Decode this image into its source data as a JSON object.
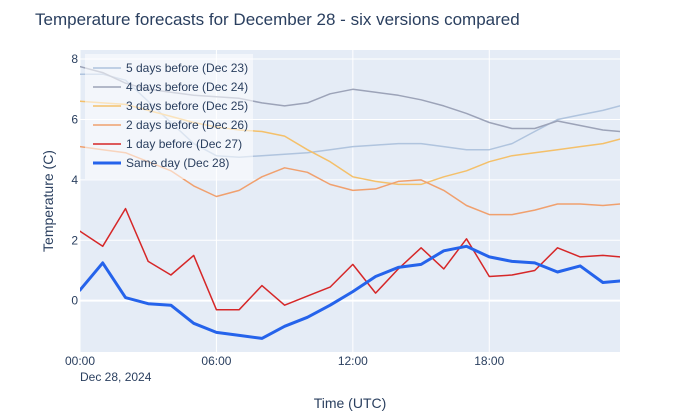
{
  "chart_data": {
    "type": "line",
    "title": "Temperature forecasts for December 28 - six versions compared",
    "xlabel": "Time (UTC)",
    "ylabel": "Temperature (C)",
    "x_tick_labels": [
      "00:00",
      "06:00",
      "12:00",
      "18:00"
    ],
    "x_date_label": "Dec 28, 2024",
    "y_ticks": [
      0,
      2,
      4,
      6,
      8
    ],
    "xlim": [
      0,
      23.75
    ],
    "ylim": [
      -1.7,
      8.3
    ],
    "grid": true,
    "legend_position": "top-left",
    "x": [
      0,
      1,
      2,
      3,
      4,
      5,
      6,
      7,
      8,
      9,
      10,
      11,
      12,
      13,
      14,
      15,
      16,
      17,
      18,
      19,
      20,
      21,
      22,
      23,
      23.75
    ],
    "series": [
      {
        "name": "5 days before (Dec 23)",
        "color": "#b0c4de",
        "width": 1.5,
        "values": [
          7.5,
          7.5,
          7.3,
          6.6,
          5.9,
          5.2,
          4.8,
          4.75,
          4.8,
          4.85,
          4.9,
          5.0,
          5.1,
          5.15,
          5.2,
          5.2,
          5.1,
          5.0,
          5.0,
          5.2,
          5.6,
          6.0,
          6.15,
          6.3,
          6.45
        ]
      },
      {
        "name": "4 days before (Dec 24)",
        "color": "#9ca3b8",
        "width": 1.5,
        "values": [
          7.75,
          7.55,
          7.2,
          7.0,
          6.9,
          6.8,
          6.75,
          6.7,
          6.55,
          6.45,
          6.55,
          6.85,
          7.0,
          6.9,
          6.8,
          6.65,
          6.45,
          6.2,
          5.9,
          5.7,
          5.7,
          5.95,
          5.8,
          5.65,
          5.6
        ]
      },
      {
        "name": "3 days before (Dec 25)",
        "color": "#f4c06a",
        "width": 1.5,
        "values": [
          6.6,
          6.55,
          6.5,
          6.3,
          6.1,
          5.9,
          5.75,
          5.65,
          5.6,
          5.45,
          5.0,
          4.6,
          4.1,
          3.95,
          3.85,
          3.85,
          4.1,
          4.3,
          4.6,
          4.8,
          4.9,
          5.0,
          5.1,
          5.2,
          5.35
        ]
      },
      {
        "name": "2 days before (Dec 26)",
        "color": "#f0a06e",
        "width": 1.5,
        "values": [
          5.1,
          5.0,
          4.9,
          4.6,
          4.3,
          3.8,
          3.45,
          3.65,
          4.1,
          4.4,
          4.25,
          3.85,
          3.65,
          3.7,
          3.95,
          4.0,
          3.65,
          3.15,
          2.85,
          2.85,
          3.0,
          3.2,
          3.2,
          3.15,
          3.2
        ]
      },
      {
        "name": "1 day before (Dec 27)",
        "color": "#d62728",
        "width": 1.5,
        "values": [
          2.3,
          1.8,
          3.05,
          1.3,
          0.85,
          1.5,
          -0.3,
          -0.3,
          0.5,
          -0.15,
          0.15,
          0.45,
          1.2,
          0.25,
          1.05,
          1.75,
          1.05,
          2.05,
          0.8,
          0.85,
          1.0,
          1.75,
          1.45,
          1.5,
          1.45
        ]
      },
      {
        "name": "Same day (Dec 28)",
        "color": "#2563eb",
        "width": 3,
        "values": [
          0.35,
          1.25,
          0.1,
          -0.1,
          -0.15,
          -0.75,
          -1.05,
          -1.15,
          -1.25,
          -0.85,
          -0.55,
          -0.15,
          0.3,
          0.8,
          1.1,
          1.2,
          1.65,
          1.8,
          1.45,
          1.3,
          1.25,
          0.95,
          1.15,
          0.6,
          0.65
        ]
      }
    ]
  }
}
